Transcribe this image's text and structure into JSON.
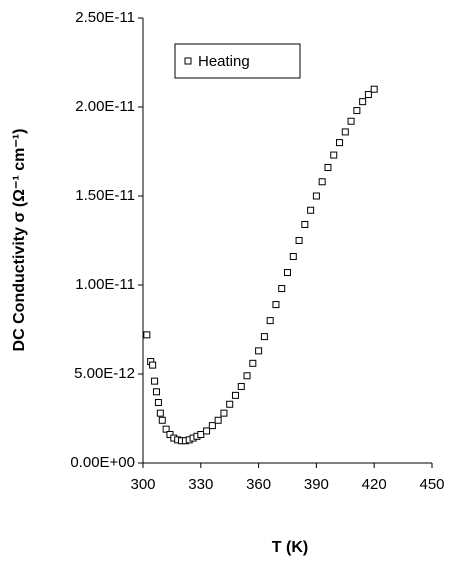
{
  "chart_data": {
    "type": "scatter",
    "x_label": "T (K)",
    "y_label": "DC Conductivity  σ (Ω⁻¹ cm⁻¹)",
    "xlim": [
      300,
      450
    ],
    "xticks": [
      300,
      330,
      360,
      390,
      420,
      450
    ],
    "ylim": [
      0,
      2.5e-11
    ],
    "yticks": [
      {
        "value": 0,
        "label": "0.00E+00"
      },
      {
        "value": 5e-12,
        "label": "5.00E-12"
      },
      {
        "value": 1e-11,
        "label": "1.00E-11"
      },
      {
        "value": 1.5e-11,
        "label": "1.50E-11"
      },
      {
        "value": 2e-11,
        "label": "2.00E-11"
      },
      {
        "value": 2.5e-11,
        "label": "2.50E-11"
      }
    ],
    "legend": "top-left",
    "series": [
      {
        "name": "Heating",
        "color": "#000000",
        "x": [
          302,
          304,
          305,
          306,
          307,
          308,
          309,
          310,
          312,
          314,
          316,
          318,
          320,
          322,
          324,
          326,
          328,
          330,
          333,
          336,
          339,
          342,
          345,
          348,
          351,
          354,
          357,
          360,
          363,
          366,
          369,
          372,
          375,
          378,
          381,
          384,
          387,
          390,
          393,
          396,
          399,
          402,
          405,
          408,
          411,
          414,
          417,
          420
        ],
        "values": [
          7.2e-12,
          5.7e-12,
          5.5e-12,
          4.6e-12,
          4e-12,
          3.4e-12,
          2.8e-12,
          2.4e-12,
          1.9e-12,
          1.6e-12,
          1.4e-12,
          1.3e-12,
          1.25e-12,
          1.25e-12,
          1.3e-12,
          1.4e-12,
          1.5e-12,
          1.6e-12,
          1.8e-12,
          2.1e-12,
          2.4e-12,
          2.8e-12,
          3.3e-12,
          3.8e-12,
          4.3e-12,
          4.9e-12,
          5.6e-12,
          6.3e-12,
          7.1e-12,
          8e-12,
          8.9e-12,
          9.8e-12,
          1.07e-11,
          1.16e-11,
          1.25e-11,
          1.34e-11,
          1.42e-11,
          1.5e-11,
          1.58e-11,
          1.66e-11,
          1.73e-11,
          1.8e-11,
          1.86e-11,
          1.92e-11,
          1.98e-11,
          2.03e-11,
          2.07e-11,
          2.1e-11
        ]
      }
    ]
  }
}
